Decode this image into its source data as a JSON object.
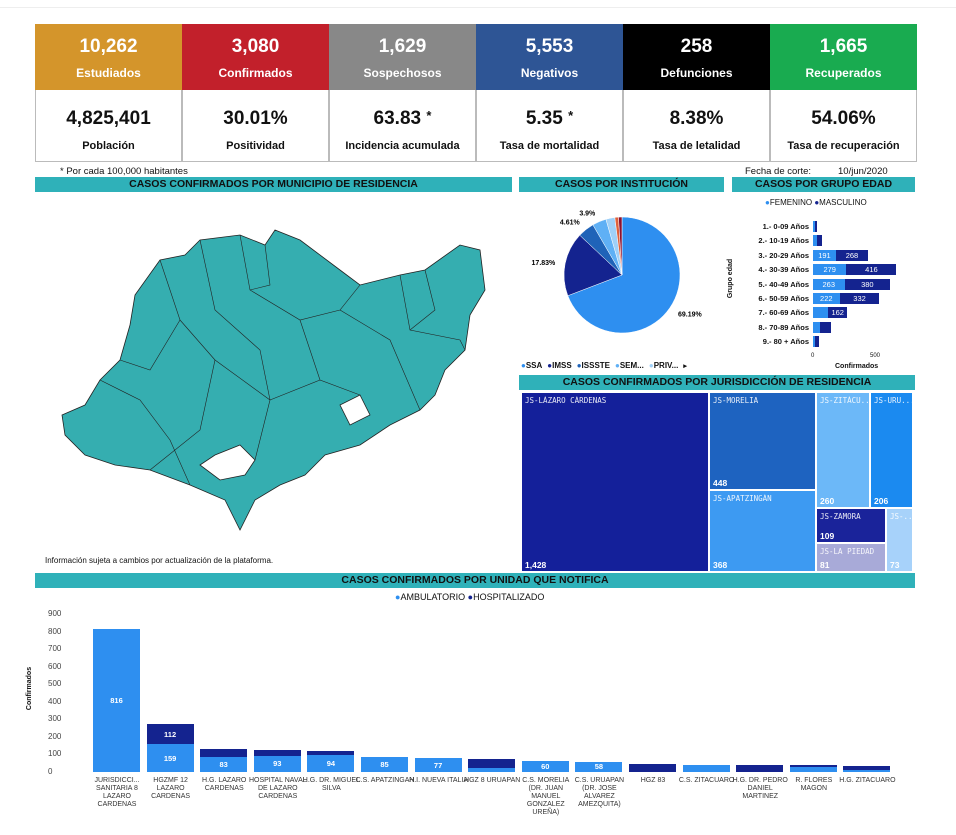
{
  "kpis": [
    {
      "value": "10,262",
      "label": "Estudiados",
      "color": "#d4952b"
    },
    {
      "value": "3,080",
      "label": "Confirmados",
      "color": "#c2202b"
    },
    {
      "value": "1,629",
      "label": "Sospechosos",
      "color": "#888888"
    },
    {
      "value": "5,553",
      "label": "Negativos",
      "color": "#2e5595"
    },
    {
      "value": "258",
      "label": "Defunciones",
      "color": "#000000"
    },
    {
      "value": "1,665",
      "label": "Recuperados",
      "color": "#19ab50"
    }
  ],
  "rates": [
    {
      "value": "4,825,401",
      "label": "Población"
    },
    {
      "value": "30.01%",
      "label": "Positividad"
    },
    {
      "value": "63.83",
      "mark": "*",
      "label": "Incidencia acumulada"
    },
    {
      "value": "5.35",
      "mark": "*",
      "label": "Tasa de mortalidad"
    },
    {
      "value": "8.38%",
      "label": "Tasa de letalidad"
    },
    {
      "value": "54.06%",
      "label": "Tasa de recuperación"
    }
  ],
  "note": "* Por cada 100,000 habitantes",
  "cutoff_label": "Fecha de corte:",
  "cutoff_date": "10/jun/2020",
  "headers": {
    "municipio": "CASOS CONFIRMADOS POR MUNICIPIO DE RESIDENCIA",
    "institucion": "CASOS POR INSTITUCIÓN",
    "edad": "CASOS POR GRUPO EDAD",
    "jurisdiccion": "CASOS CONFIRMADOS POR JURISDICCIÓN DE RESIDENCIA",
    "unidad": "CASOS CONFIRMADOS POR UNIDAD QUE NOTIFICA"
  },
  "map_note": "Información sujeta a cambios por actualización de la plataforma.",
  "map_color": "#35aeb0",
  "chart_data": [
    {
      "type": "pie",
      "title": "CASOS POR INSTITUCIÓN",
      "slices": [
        {
          "name": "SSA",
          "value": 69.19,
          "label": "69.19%",
          "color": "#2e8ff0"
        },
        {
          "name": "IMSS",
          "value": 17.83,
          "label": "17.83%",
          "color": "#14238f"
        },
        {
          "name": "ISSSTE",
          "value": 4.61,
          "label": "4.61%",
          "color": "#1f63b8"
        },
        {
          "name": "SEM...",
          "value": 3.9,
          "label": "3.9%",
          "color": "#5fb0f5"
        },
        {
          "name": "PRIV...",
          "value": 2.5,
          "label": "",
          "color": "#9fd0f8"
        },
        {
          "name": "",
          "value": 1.0,
          "label": "",
          "color": "#e0603a"
        },
        {
          "name": "",
          "value": 0.97,
          "label": "",
          "color": "#8a1030"
        }
      ],
      "legend": [
        "SSA",
        "IMSS",
        "ISSSTE",
        "SEM...",
        "PRIV..."
      ]
    },
    {
      "type": "bar",
      "orientation": "horizontal",
      "stacked": true,
      "title": "CASOS POR GRUPO EDAD",
      "ylabel": "Grupo edad",
      "xlabel": "Confirmados",
      "xticks": [
        "0",
        "500"
      ],
      "categories": [
        "1.- 0-09 Años",
        "2.- 10-19 Años",
        "3.- 20-29 Años",
        "4.- 30-39 Años",
        "5.- 40-49 Años",
        "6.- 50-59 Años",
        "7.- 60-69 Años",
        "8.- 70-89 Años",
        "9.- 80 + Años"
      ],
      "series": [
        {
          "name": "FEMENINO",
          "color": "#2e8ff0",
          "values": [
            15,
            35,
            191,
            279,
            263,
            222,
            125,
            55,
            20
          ],
          "labels": [
            "",
            "",
            "191",
            "279",
            "263",
            "222",
            "",
            "",
            ""
          ]
        },
        {
          "name": "MASCULINO",
          "color": "#14238f",
          "values": [
            18,
            40,
            268,
            416,
            380,
            332,
            162,
            95,
            30
          ],
          "labels": [
            "",
            "",
            "268",
            "416",
            "380",
            "332",
            "162",
            "",
            ""
          ]
        }
      ]
    },
    {
      "type": "treemap",
      "title": "CASOS CONFIRMADOS POR JURISDICCIÓN DE RESIDENCIA",
      "items": [
        {
          "name": "JS-LÁZARO CÁRDENAS",
          "value": 1428,
          "label": "1,428",
          "color": "#14209a"
        },
        {
          "name": "JS-MORELIA",
          "value": 448,
          "label": "448",
          "color": "#1e63c0"
        },
        {
          "name": "JS-APATZINGÁN",
          "value": 368,
          "label": "368",
          "color": "#3d9af2"
        },
        {
          "name": "JS-ZITÁCU...",
          "value": 260,
          "label": "260",
          "color": "#6cb8f8"
        },
        {
          "name": "JS-URU...",
          "value": 206,
          "label": "206",
          "color": "#1b8af0"
        },
        {
          "name": "JS-ZAMORA",
          "value": 109,
          "label": "109",
          "color": "#1a239a"
        },
        {
          "name": "JS-LA PIEDAD",
          "value": 81,
          "label": "81",
          "color": "#a8aad8"
        },
        {
          "name": "JS-...",
          "value": 73,
          "label": "73",
          "color": "#a7d2fa"
        }
      ]
    },
    {
      "type": "bar",
      "stacked": true,
      "title": "CASOS CONFIRMADOS POR UNIDAD QUE NOTIFICA",
      "ylabel": "Confirmados",
      "ylim": [
        0,
        900
      ],
      "yticks": [
        "0",
        "100",
        "200",
        "300",
        "400",
        "500",
        "600",
        "700",
        "800",
        "900"
      ],
      "categories": [
        "JURISDICCI... SANITARIA 8 LAZARO CARDENAS",
        "HGZMF 12 LAZARO CARDENAS",
        "H.G. LAZARO CARDENAS",
        "HOSPITAL NAVAL DE LAZARO CARDENAS",
        "H.G. DR. MIGUEL SILVA",
        "C.S. APATZINGAN",
        "H.I. NUEVA ITALIA",
        "HGZ 8 URUAPAN",
        "C.S. MORELIA (DR. JUAN MANUEL GONZALEZ UREÑA)",
        "C.S. URUAPAN (DR. JOSE ALVAREZ AMEZQUITA)",
        "HGZ 83",
        "C.S. ZITACUARO",
        "H.G. DR. PEDRO DANIEL MARTINEZ",
        "R. FLORES MAGON",
        "H.G. ZITACUARO"
      ],
      "series": [
        {
          "name": "AMBULATORIO",
          "color": "#2e8ff0",
          "values": [
            816,
            159,
            83,
            93,
            94,
            85,
            77,
            25,
            60,
            58,
            0,
            40,
            0,
            30,
            12
          ],
          "labels": [
            "816",
            "159",
            "83",
            "93",
            "94",
            "85",
            "77",
            "",
            "60",
            "58",
            "",
            "",
            "",
            "",
            ""
          ]
        },
        {
          "name": "HOSPITALIZADO",
          "color": "#14238f",
          "values": [
            0,
            112,
            50,
            35,
            25,
            0,
            0,
            48,
            0,
            0,
            45,
            0,
            40,
            8,
            25
          ],
          "labels": [
            "",
            "112",
            "",
            "",
            "",
            "",
            "",
            "",
            "",
            "",
            "",
            "",
            "",
            "",
            ""
          ]
        }
      ]
    }
  ]
}
